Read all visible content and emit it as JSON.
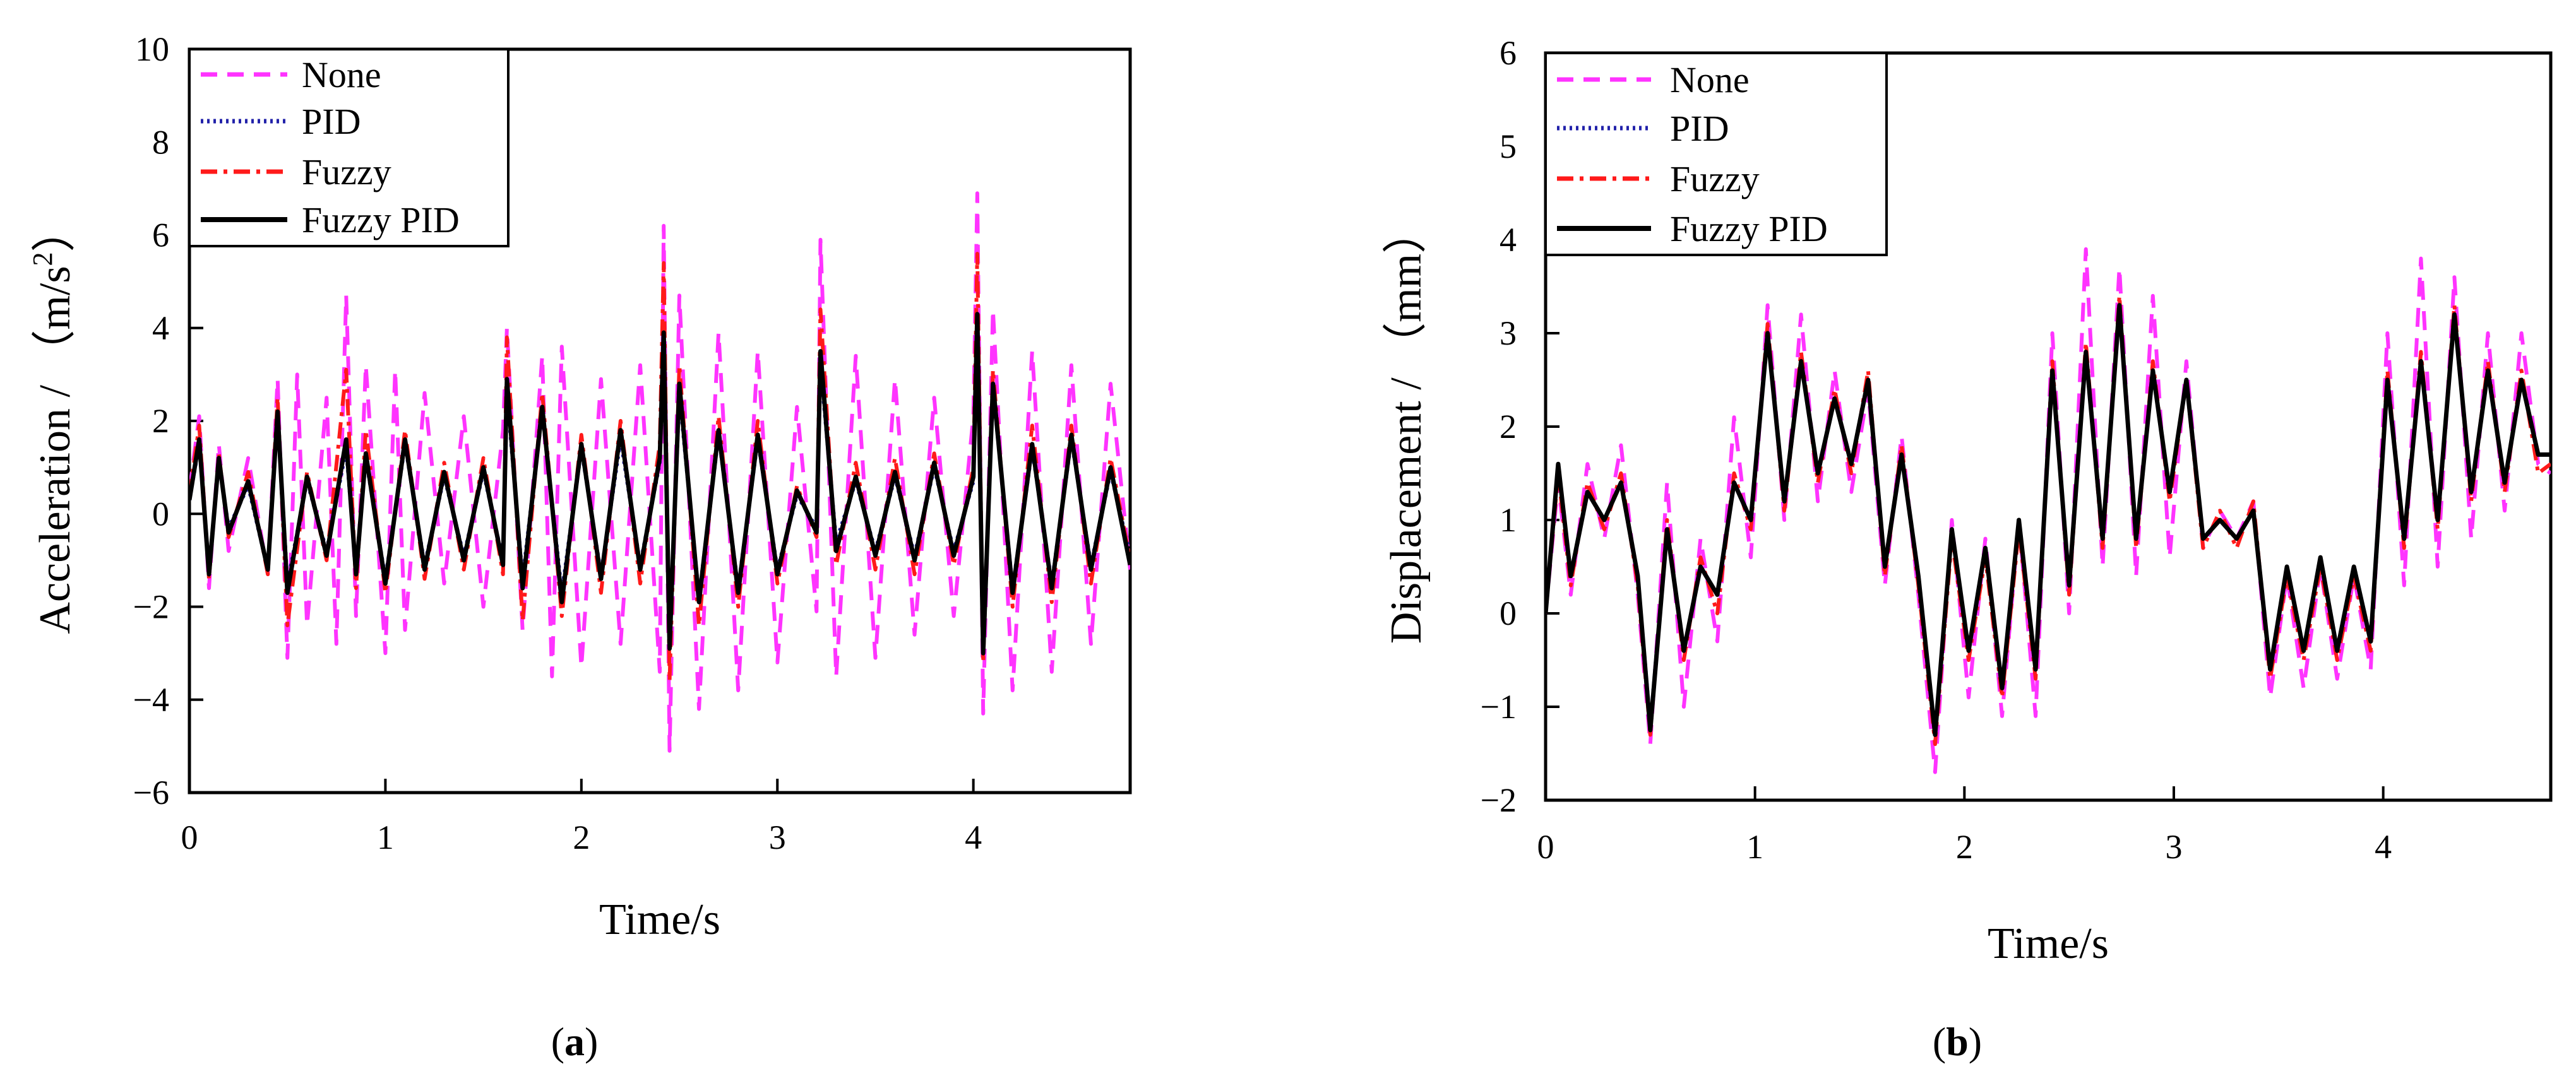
{
  "chart_data": [
    {
      "type": "line",
      "panel_label": "a",
      "title": "",
      "xlabel": "Time/s",
      "ylabel": "Acceleration / （m/s",
      "ylabel_sup": "2",
      "ylabel_close": "）",
      "xlim": [
        0,
        4.8
      ],
      "ylim": [
        -6,
        10
      ],
      "xticks": [
        "0",
        "1",
        "2",
        "3",
        "4"
      ],
      "yticks": [
        "−6",
        "−4",
        "−2",
        "0",
        "2",
        "4",
        "6",
        "8",
        "10"
      ],
      "legend_position": "top-left",
      "series": [
        {
          "name": "None",
          "color": "#ff33ff",
          "style": "dashed",
          "x": [
            0,
            0.05,
            0.1,
            0.15,
            0.2,
            0.3,
            0.4,
            0.45,
            0.5,
            0.55,
            0.6,
            0.7,
            0.75,
            0.8,
            0.85,
            0.9,
            1.0,
            1.05,
            1.1,
            1.2,
            1.3,
            1.4,
            1.5,
            1.6,
            1.62,
            1.7,
            1.8,
            1.85,
            1.9,
            2.0,
            2.1,
            2.2,
            2.3,
            2.4,
            2.42,
            2.45,
            2.5,
            2.6,
            2.7,
            2.8,
            2.9,
            3.0,
            3.1,
            3.2,
            3.22,
            3.3,
            3.4,
            3.5,
            3.6,
            3.7,
            3.8,
            3.9,
            4.0,
            4.02,
            4.05,
            4.1,
            4.2,
            4.3,
            4.4,
            4.5,
            4.6,
            4.7,
            4.8
          ],
          "y": [
            0.5,
            2.1,
            -1.6,
            1.5,
            -0.8,
            1.2,
            -1.3,
            2.9,
            -3.1,
            3,
            -2.4,
            2.5,
            -2.8,
            4.7,
            -2.2,
            3.2,
            -3,
            3.1,
            -2.5,
            2.6,
            -1.5,
            2.1,
            -2,
            1.8,
            4,
            -2.5,
            3.4,
            -3.5,
            3.6,
            -3.3,
            2.9,
            -2.8,
            3.2,
            -3.4,
            6.2,
            -5.1,
            4.7,
            -4.2,
            3.9,
            -3.8,
            3.5,
            -3.2,
            2.3,
            -2.1,
            5.9,
            -3.5,
            3.4,
            -3.1,
            2.9,
            -2.6,
            2.5,
            -2.2,
            2.1,
            6.9,
            -4.3,
            4.4,
            -3.8,
            3.5,
            -3.4,
            3.2,
            -2.8,
            2.8,
            -1.2
          ]
        },
        {
          "name": "PID",
          "color": "#2222aa",
          "style": "dotted",
          "x": [
            0,
            0.05,
            0.1,
            0.15,
            0.2,
            0.3,
            0.4,
            0.45,
            0.5,
            0.6,
            0.7,
            0.8,
            0.85,
            0.9,
            1.0,
            1.1,
            1.2,
            1.3,
            1.4,
            1.5,
            1.6,
            1.62,
            1.7,
            1.8,
            1.9,
            2.0,
            2.1,
            2.2,
            2.3,
            2.4,
            2.42,
            2.45,
            2.5,
            2.6,
            2.7,
            2.8,
            2.9,
            3.0,
            3.1,
            3.2,
            3.22,
            3.3,
            3.4,
            3.5,
            3.6,
            3.7,
            3.8,
            3.9,
            4.0,
            4.02,
            4.05,
            4.1,
            4.2,
            4.3,
            4.4,
            4.5,
            4.6,
            4.7,
            4.8
          ],
          "y": [
            0.3,
            1.5,
            -1.2,
            1.1,
            -0.3,
            0.6,
            -1.2,
            2.1,
            -1.5,
            0.7,
            -0.8,
            1.4,
            -1.2,
            1.2,
            -1.4,
            1.5,
            -1.1,
            0.8,
            -0.9,
            0.9,
            -1,
            2.6,
            -1.4,
            2.2,
            -1.7,
            1.4,
            -1.3,
            1.6,
            -1.1,
            1.1,
            3.6,
            -2.8,
            2.6,
            -1.8,
            1.7,
            -1.6,
            1.6,
            -1.2,
            0.4,
            -0.3,
            3.2,
            -0.6,
            0.7,
            -0.8,
            0.8,
            -0.9,
            1,
            -0.8,
            0.7,
            4,
            -2.8,
            2.7,
            -1.6,
            1.4,
            -1.5,
            1.6,
            -1.1,
            0.9,
            -0.9
          ]
        },
        {
          "name": "Fuzzy",
          "color": "#ff1a1a",
          "style": "dashdot",
          "x": [
            0,
            0.05,
            0.1,
            0.15,
            0.2,
            0.3,
            0.4,
            0.45,
            0.5,
            0.6,
            0.7,
            0.8,
            0.85,
            0.9,
            1.0,
            1.1,
            1.2,
            1.3,
            1.4,
            1.5,
            1.6,
            1.62,
            1.7,
            1.8,
            1.9,
            2.0,
            2.1,
            2.2,
            2.3,
            2.4,
            2.42,
            2.45,
            2.5,
            2.6,
            2.7,
            2.8,
            2.9,
            3.0,
            3.1,
            3.2,
            3.22,
            3.3,
            3.4,
            3.5,
            3.6,
            3.7,
            3.8,
            3.9,
            4.0,
            4.02,
            4.05,
            4.1,
            4.2,
            4.3,
            4.4,
            4.5,
            4.6,
            4.7,
            4.8
          ],
          "y": [
            0.4,
            1.9,
            -1.4,
            1.3,
            -0.5,
            0.9,
            -1.3,
            2.5,
            -2.4,
            0.9,
            -1,
            3.1,
            -1.6,
            1.8,
            -1.7,
            1.8,
            -1.4,
            1.1,
            -1.2,
            1.2,
            -1.3,
            3.8,
            -2.3,
            2.6,
            -2.2,
            1.7,
            -1.7,
            2,
            -1.5,
            1.5,
            5.4,
            -3.6,
            3.2,
            -2.4,
            2.1,
            -2,
            2,
            -1.5,
            0.6,
            -0.5,
            4.4,
            -1.1,
            1.1,
            -1.2,
            1.2,
            -1.3,
            1.3,
            -1.1,
            1,
            5.6,
            -3.2,
            3.1,
            -2,
            1.9,
            -1.9,
            1.9,
            -1.5,
            1.2,
            -1
          ]
        },
        {
          "name": "Fuzzy PID",
          "color": "#000000",
          "style": "solid",
          "x": [
            0,
            0.05,
            0.1,
            0.15,
            0.2,
            0.3,
            0.4,
            0.45,
            0.5,
            0.6,
            0.7,
            0.8,
            0.85,
            0.9,
            1.0,
            1.1,
            1.2,
            1.3,
            1.4,
            1.5,
            1.6,
            1.62,
            1.7,
            1.8,
            1.9,
            2.0,
            2.1,
            2.2,
            2.3,
            2.4,
            2.42,
            2.45,
            2.5,
            2.6,
            2.7,
            2.8,
            2.9,
            3.0,
            3.1,
            3.2,
            3.22,
            3.3,
            3.4,
            3.5,
            3.6,
            3.7,
            3.8,
            3.9,
            4.0,
            4.02,
            4.05,
            4.1,
            4.2,
            4.3,
            4.4,
            4.5,
            4.6,
            4.7,
            4.8
          ],
          "y": [
            0.3,
            1.6,
            -1.3,
            1.2,
            -0.4,
            0.7,
            -1.2,
            2.2,
            -1.7,
            0.8,
            -0.9,
            1.6,
            -1.3,
            1.3,
            -1.5,
            1.6,
            -1.2,
            0.9,
            -1,
            1,
            -1.1,
            2.9,
            -1.6,
            2.3,
            -1.9,
            1.5,
            -1.4,
            1.8,
            -1.2,
            1.2,
            3.9,
            -2.9,
            2.8,
            -1.9,
            1.8,
            -1.7,
            1.7,
            -1.3,
            0.5,
            -0.4,
            3.5,
            -0.8,
            0.8,
            -0.9,
            0.9,
            -1,
            1.1,
            -0.9,
            0.8,
            4.3,
            -3,
            2.8,
            -1.7,
            1.5,
            -1.6,
            1.7,
            -1.2,
            1,
            -1.1
          ]
        }
      ]
    },
    {
      "type": "line",
      "panel_label": "b",
      "title": "",
      "xlabel": "Time/s",
      "ylabel": "Displacement / （mm）",
      "xlim": [
        0,
        4.8
      ],
      "ylim": [
        -2,
        6
      ],
      "xticks": [
        "0",
        "1",
        "2",
        "3",
        "4"
      ],
      "yticks": [
        "−2",
        "−1",
        "0",
        "1",
        "2",
        "3",
        "4",
        "5",
        "6"
      ],
      "legend_position": "top-left",
      "series": [
        {
          "name": "None",
          "color": "#ff33ff",
          "style": "dashed",
          "x": [
            0,
            0.06,
            0.12,
            0.2,
            0.28,
            0.36,
            0.44,
            0.5,
            0.58,
            0.66,
            0.74,
            0.82,
            0.9,
            0.98,
            1.06,
            1.14,
            1.22,
            1.3,
            1.38,
            1.46,
            1.54,
            1.62,
            1.7,
            1.78,
            1.86,
            1.94,
            2.02,
            2.1,
            2.18,
            2.26,
            2.34,
            2.42,
            2.5,
            2.58,
            2.66,
            2.74,
            2.82,
            2.9,
            2.98,
            3.06,
            3.14,
            3.22,
            3.3,
            3.38,
            3.46,
            3.54,
            3.62,
            3.7,
            3.78,
            3.86,
            3.94,
            4.02,
            4.1,
            4.18,
            4.26,
            4.34,
            4.42,
            4.5,
            4.58,
            4.66,
            4.74,
            4.8
          ],
          "y": [
            0,
            1.4,
            0.2,
            1.6,
            0.8,
            1.8,
            0.2,
            -1.4,
            1.4,
            -1.0,
            0.8,
            -0.3,
            2.1,
            0.6,
            3.3,
            1.0,
            3.2,
            1.2,
            2.6,
            1.3,
            2.4,
            0.3,
            1.9,
            0.2,
            -1.7,
            1.0,
            -0.9,
            0.8,
            -1.1,
            1.0,
            -1.1,
            3.0,
            0,
            3.9,
            0.5,
            3.7,
            0.4,
            3.4,
            0.6,
            2.7,
            0.7,
            1.1,
            0.8,
            1.2,
            -0.9,
            0.4,
            -0.8,
            0.5,
            -0.7,
            0.4,
            -0.6,
            3.0,
            0.3,
            3.8,
            0.5,
            3.6,
            0.8,
            3.0,
            1.1,
            3.0,
            1.6,
            1.5
          ]
        },
        {
          "name": "PID",
          "color": "#2222aa",
          "style": "dotted",
          "x": [
            0,
            0.06,
            0.12,
            0.2,
            0.28,
            0.36,
            0.44,
            0.5,
            0.58,
            0.66,
            0.74,
            0.82,
            0.9,
            0.98,
            1.06,
            1.14,
            1.22,
            1.3,
            1.38,
            1.46,
            1.54,
            1.62,
            1.7,
            1.78,
            1.86,
            1.94,
            2.02,
            2.1,
            2.18,
            2.26,
            2.34,
            2.42,
            2.5,
            2.58,
            2.66,
            2.74,
            2.82,
            2.9,
            2.98,
            3.06,
            3.14,
            3.22,
            3.3,
            3.38,
            3.46,
            3.54,
            3.62,
            3.7,
            3.78,
            3.86,
            3.94,
            4.02,
            4.1,
            4.18,
            4.26,
            4.34,
            4.42,
            4.5,
            4.58,
            4.66,
            4.74,
            4.8
          ],
          "y": [
            0,
            1.6,
            0.4,
            1.3,
            1.0,
            1.4,
            0.4,
            -1.2,
            0.9,
            -0.4,
            0.5,
            0.2,
            1.4,
            1.0,
            3.0,
            1.2,
            2.7,
            1.5,
            2.3,
            1.6,
            2.5,
            0.5,
            1.7,
            0.4,
            -1.3,
            0.9,
            -0.4,
            0.7,
            -0.8,
            1.0,
            -0.6,
            2.6,
            0.3,
            2.8,
            0.8,
            3.3,
            0.8,
            2.6,
            1.3,
            2.5,
            0.8,
            1.0,
            0.8,
            1.1,
            -0.6,
            0.5,
            -0.4,
            0.6,
            -0.4,
            0.5,
            -0.3,
            2.5,
            0.8,
            2.7,
            1.0,
            3.2,
            1.3,
            2.6,
            1.4,
            2.5,
            1.7,
            1.7
          ]
        },
        {
          "name": "Fuzzy",
          "color": "#ff1a1a",
          "style": "dashdot",
          "x": [
            0,
            0.06,
            0.12,
            0.2,
            0.28,
            0.36,
            0.44,
            0.5,
            0.58,
            0.66,
            0.74,
            0.82,
            0.9,
            0.98,
            1.06,
            1.14,
            1.22,
            1.3,
            1.38,
            1.46,
            1.54,
            1.62,
            1.7,
            1.78,
            1.86,
            1.94,
            2.02,
            2.1,
            2.18,
            2.26,
            2.34,
            2.42,
            2.5,
            2.58,
            2.66,
            2.74,
            2.82,
            2.9,
            2.98,
            3.06,
            3.14,
            3.22,
            3.3,
            3.38,
            3.46,
            3.54,
            3.62,
            3.7,
            3.78,
            3.86,
            3.94,
            4.02,
            4.1,
            4.18,
            4.26,
            4.34,
            4.42,
            4.5,
            4.58,
            4.66,
            4.74,
            4.8
          ],
          "y": [
            0,
            1.5,
            0.3,
            1.4,
            0.9,
            1.5,
            0.3,
            -1.3,
            1.0,
            -0.5,
            0.6,
            0.0,
            1.5,
            0.9,
            3.1,
            1.1,
            2.8,
            1.4,
            2.4,
            1.5,
            2.6,
            0.4,
            1.8,
            0.3,
            -1.4,
            0.8,
            -0.5,
            0.6,
            -0.9,
            0.9,
            -0.7,
            2.7,
            0.2,
            2.9,
            0.7,
            3.4,
            0.7,
            2.7,
            1.2,
            2.5,
            0.7,
            1.1,
            0.7,
            1.2,
            -0.7,
            0.4,
            -0.5,
            0.5,
            -0.5,
            0.4,
            -0.4,
            2.6,
            0.7,
            2.8,
            0.9,
            3.3,
            1.2,
            2.7,
            1.3,
            2.6,
            1.5,
            1.6
          ]
        },
        {
          "name": "Fuzzy PID",
          "color": "#000000",
          "style": "solid",
          "x": [
            0,
            0.06,
            0.12,
            0.2,
            0.28,
            0.36,
            0.44,
            0.5,
            0.58,
            0.66,
            0.74,
            0.82,
            0.9,
            0.98,
            1.06,
            1.14,
            1.22,
            1.3,
            1.38,
            1.46,
            1.54,
            1.62,
            1.7,
            1.78,
            1.86,
            1.94,
            2.02,
            2.1,
            2.18,
            2.26,
            2.34,
            2.42,
            2.5,
            2.58,
            2.66,
            2.74,
            2.82,
            2.9,
            2.98,
            3.06,
            3.14,
            3.22,
            3.3,
            3.38,
            3.46,
            3.54,
            3.62,
            3.7,
            3.78,
            3.86,
            3.94,
            4.02,
            4.1,
            4.18,
            4.26,
            4.34,
            4.42,
            4.5,
            4.58,
            4.66,
            4.74,
            4.8
          ],
          "y": [
            0,
            1.6,
            0.4,
            1.3,
            1.0,
            1.4,
            0.4,
            -1.25,
            0.9,
            -0.4,
            0.5,
            0.2,
            1.4,
            1.0,
            3.0,
            1.2,
            2.7,
            1.5,
            2.3,
            1.6,
            2.5,
            0.5,
            1.7,
            0.4,
            -1.3,
            0.9,
            -0.4,
            0.7,
            -0.8,
            1.0,
            -0.6,
            2.6,
            0.3,
            2.8,
            0.8,
            3.3,
            0.8,
            2.6,
            1.3,
            2.5,
            0.8,
            1.0,
            0.8,
            1.1,
            -0.6,
            0.5,
            -0.4,
            0.6,
            -0.4,
            0.5,
            -0.3,
            2.5,
            0.8,
            2.7,
            1.0,
            3.2,
            1.3,
            2.6,
            1.4,
            2.5,
            1.7,
            1.7
          ]
        }
      ]
    }
  ]
}
